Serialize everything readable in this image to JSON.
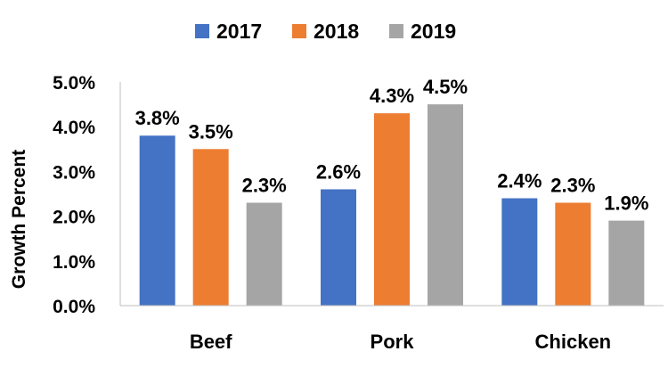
{
  "chart_data": {
    "type": "bar",
    "title": "",
    "xlabel": "",
    "ylabel": "Growth Percent",
    "categories": [
      "Beef",
      "Pork",
      "Chicken"
    ],
    "series": [
      {
        "name": "2017",
        "values": [
          3.8,
          2.6,
          2.4
        ],
        "labels": [
          "3.8%",
          "2.6%",
          "2.4%"
        ],
        "color": "#4472C4"
      },
      {
        "name": "2018",
        "values": [
          3.5,
          4.3,
          2.3
        ],
        "labels": [
          "3.5%",
          "4.3%",
          "2.3%"
        ],
        "color": "#ED7D31"
      },
      {
        "name": "2019",
        "values": [
          2.3,
          4.5,
          1.9
        ],
        "labels": [
          "2.3%",
          "4.5%",
          "1.9%"
        ],
        "color": "#A5A5A5"
      }
    ],
    "ylim": [
      0,
      5
    ],
    "yticks": [
      0,
      1,
      2,
      3,
      4,
      5
    ],
    "ytick_labels": [
      "0.0%",
      "1.0%",
      "2.0%",
      "3.0%",
      "4.0%",
      "5.0%"
    ],
    "grid": false,
    "legend": "top-center"
  }
}
